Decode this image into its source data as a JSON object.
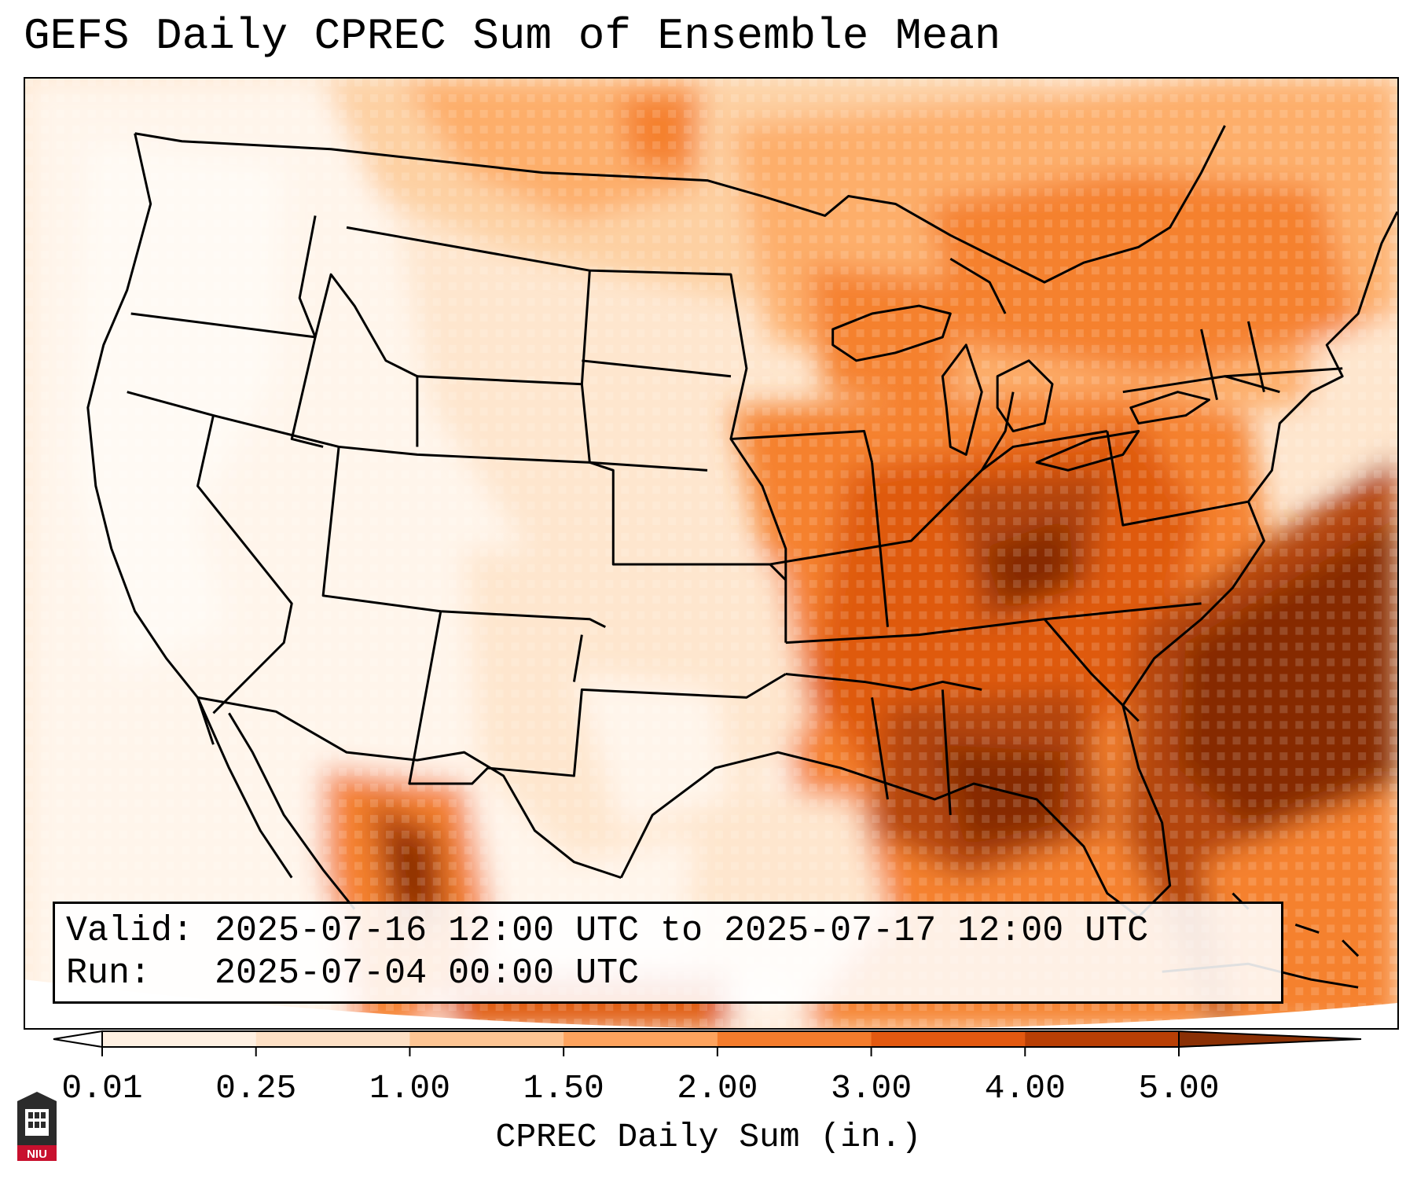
{
  "title": "GEFS Daily CPREC Sum of Ensemble Mean",
  "valid_box": {
    "valid_label": "Valid:",
    "valid_value": "2025-07-16 12:00 UTC to 2025-07-17 12:00 UTC",
    "run_label": "Run:",
    "run_value": "2025-07-04 00:00 UTC"
  },
  "colorbar": {
    "label": "CPREC Daily Sum (in.)",
    "ticks": [
      "0.01",
      "0.25",
      "1.00",
      "1.50",
      "2.00",
      "3.00",
      "4.00",
      "5.00"
    ],
    "colors": [
      "#fef0e2",
      "#fde0c5",
      "#fdc594",
      "#fda35e",
      "#f47c2c",
      "#e35910",
      "#b83f05",
      "#8a3005"
    ],
    "extend": "both"
  },
  "map": {
    "region": "Continental United States",
    "colors": {
      "lowest": "#fff5eb",
      "low": "#fee6ce",
      "light": "#fdd0a2",
      "medium": "#fdae6b",
      "orange": "#f5812e",
      "dark": "#df5a0e",
      "darker": "#b3440a",
      "darkest": "#862c04"
    }
  },
  "logo": {
    "text": "NIU",
    "icon": "niu-castle-icon"
  }
}
